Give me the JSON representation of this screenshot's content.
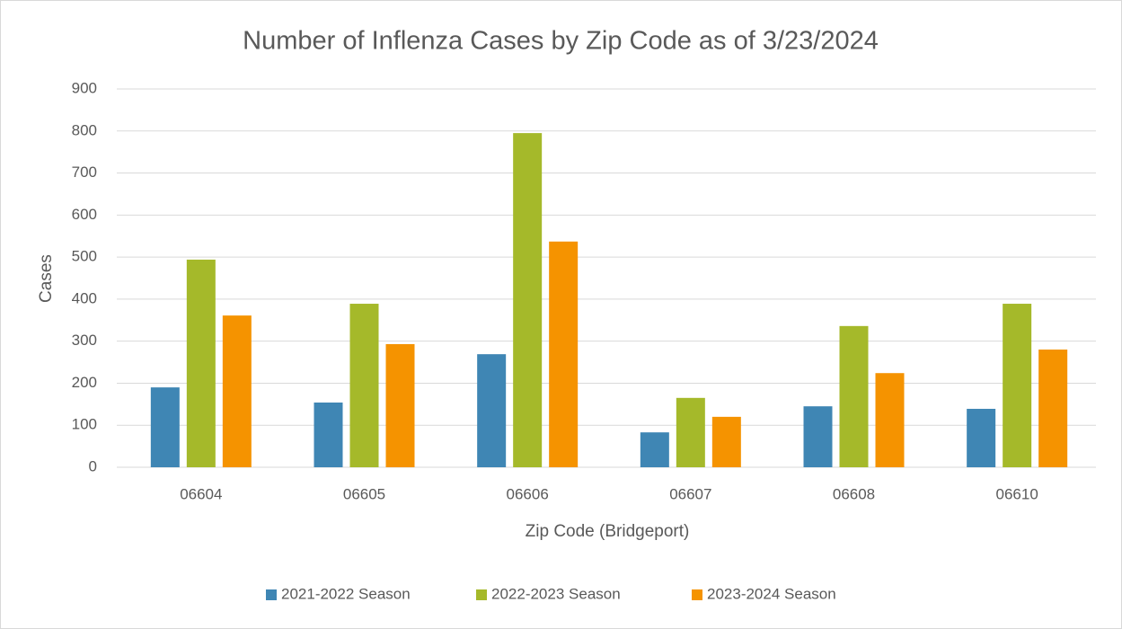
{
  "chart_data": {
    "type": "bar",
    "title": "Number of Inflenza Cases by Zip Code as of 3/23/2024",
    "x_label": "Zip Code (Bridgeport)",
    "y_label": "Cases",
    "categories": [
      "06604",
      "06605",
      "06606",
      "06607",
      "06608",
      "06610"
    ],
    "series": [
      {
        "name": "2021-2022 Season",
        "color": "#3f86b4",
        "values": [
          190,
          154,
          269,
          83,
          145,
          139
        ]
      },
      {
        "name": "2022-2023 Season",
        "color": "#a5b92a",
        "values": [
          494,
          389,
          795,
          165,
          336,
          389
        ]
      },
      {
        "name": "2023-2024 Season",
        "color": "#f59300",
        "values": [
          361,
          293,
          537,
          120,
          224,
          280
        ]
      }
    ],
    "ylim": [
      0,
      900
    ],
    "yticks": [
      0,
      100,
      200,
      300,
      400,
      500,
      600,
      700,
      800,
      900
    ],
    "grid": true,
    "legend": "bottom"
  }
}
